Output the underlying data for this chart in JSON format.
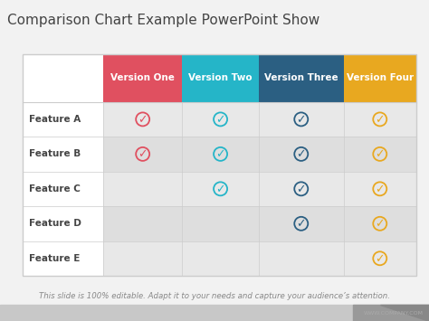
{
  "title": "Comparison Chart Example PowerPoint Show",
  "title_fontsize": 11,
  "title_color": "#444444",
  "subtitle": "This slide is 100% editable. Adapt it to your needs and capture your audience’s attention.",
  "subtitle_fontsize": 6.2,
  "subtitle_color": "#888888",
  "background_color": "#f2f2f2",
  "watermark": "WWW.COMPANY.COM",
  "watermark_fontsize": 4.5,
  "columns": [
    "",
    "Version One",
    "Version Two",
    "Version Three",
    "Version Four"
  ],
  "col_colors": [
    "#ffffff",
    "#e05060",
    "#25b5c8",
    "#2b5f82",
    "#e8a820"
  ],
  "col_text_colors": [
    "#333333",
    "#ffffff",
    "#ffffff",
    "#ffffff",
    "#ffffff"
  ],
  "rows": [
    "Feature A",
    "Feature B",
    "Feature C",
    "Feature D",
    "Feature E"
  ],
  "checks": [
    [
      true,
      true,
      true,
      true
    ],
    [
      true,
      true,
      true,
      true
    ],
    [
      false,
      true,
      true,
      true
    ],
    [
      false,
      false,
      true,
      true
    ],
    [
      false,
      false,
      false,
      true
    ]
  ],
  "check_colors": [
    "#e05060",
    "#25b5c8",
    "#2b5f82",
    "#e8a820"
  ],
  "row_label_fontsize": 7.5,
  "header_fontsize": 7.5,
  "check_fontsize": 9,
  "row_colors": [
    "#e8e8e8",
    "#dedede"
  ],
  "first_col_color": "#ffffff",
  "header_divider_color": "#cccccc",
  "table_border_color": "#cccccc"
}
